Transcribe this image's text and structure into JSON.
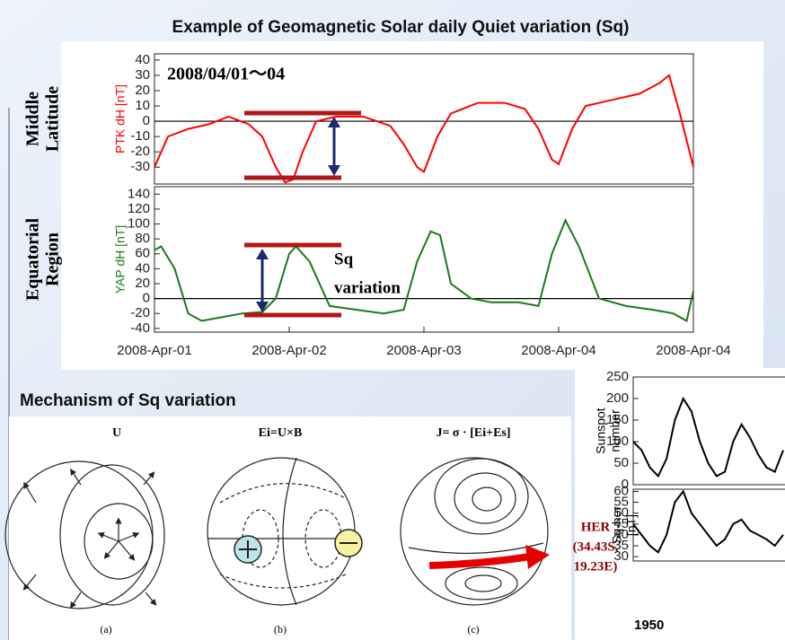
{
  "header": "Example of Geomagnetic Solar daily Quiet variation (Sq)",
  "chart_data": [
    {
      "type": "line",
      "annotation": "2008/04/01～04",
      "region_label": [
        "Middle",
        "Latitude"
      ],
      "ylabel": "PTK dH [nT]",
      "color": "#ff0000",
      "x": [
        0,
        0.1,
        0.25,
        0.4,
        0.55,
        0.7,
        0.8,
        0.9,
        0.97,
        1.03,
        1.1,
        1.2,
        1.35,
        1.55,
        1.75,
        1.85,
        1.95,
        2.0,
        2.1,
        2.2,
        2.4,
        2.6,
        2.75,
        2.85,
        2.95,
        3.0,
        3.1,
        3.2,
        3.4,
        3.6,
        3.75,
        3.82,
        3.9,
        4.0
      ],
      "values": [
        -30,
        -10,
        -5,
        -2,
        3,
        -2,
        -10,
        -30,
        -40,
        -38,
        -20,
        0,
        3,
        3,
        -3,
        -15,
        -30,
        -33,
        -10,
        5,
        12,
        12,
        8,
        -5,
        -25,
        -28,
        -5,
        10,
        14,
        18,
        25,
        30,
        5,
        -30
      ],
      "xlim": [
        0,
        4
      ],
      "ylim": [
        -41,
        44
      ],
      "yticks": [
        40,
        30,
        20,
        10,
        0,
        -10,
        -20,
        -30
      ]
    },
    {
      "type": "line",
      "annotation": [
        "Sq",
        "variation"
      ],
      "region_label": [
        "Equatorial",
        "Region"
      ],
      "ylabel": "YAP dH [nT]",
      "color": "#1a7a1a",
      "x": [
        0,
        0.05,
        0.15,
        0.25,
        0.35,
        0.5,
        0.65,
        0.8,
        0.9,
        1.0,
        1.05,
        1.15,
        1.3,
        1.5,
        1.7,
        1.85,
        1.95,
        2.05,
        2.12,
        2.2,
        2.35,
        2.5,
        2.7,
        2.85,
        2.95,
        3.05,
        3.15,
        3.3,
        3.5,
        3.7,
        3.85,
        3.95,
        4.0
      ],
      "values": [
        65,
        70,
        40,
        -20,
        -30,
        -25,
        -20,
        -18,
        0,
        60,
        70,
        50,
        -10,
        -15,
        -20,
        -15,
        50,
        90,
        85,
        20,
        0,
        -5,
        -5,
        -10,
        60,
        105,
        70,
        0,
        -10,
        -15,
        -20,
        -30,
        10
      ],
      "xlim": [
        0,
        4
      ],
      "ylim": [
        -45,
        150
      ],
      "yticks": [
        140,
        120,
        100,
        80,
        60,
        40,
        20,
        0,
        -20,
        -40
      ],
      "xticks": [
        {
          "value": 0,
          "label": "2008-Apr-01"
        },
        {
          "value": 1,
          "label": "2008-Apr-02"
        },
        {
          "value": 2,
          "label": "2008-Apr-03"
        },
        {
          "value": 3,
          "label": "2008-Apr-04"
        },
        {
          "value": 4,
          "label": "2008-Apr-04"
        }
      ]
    },
    {
      "type": "line",
      "ylabel": [
        "Sunspot",
        "number"
      ],
      "color": "#000000",
      "values": [
        100,
        80,
        40,
        20,
        60,
        150,
        200,
        170,
        100,
        50,
        20,
        30,
        100,
        140,
        110,
        70,
        40,
        30,
        80
      ],
      "ylim": [
        0,
        250
      ],
      "yticks": [
        250,
        200,
        150,
        100,
        50,
        0
      ]
    },
    {
      "type": "line",
      "ylabel": [
        "Sq-her",
        "[nT]"
      ],
      "color": "#000000",
      "annotation": "1950",
      "values": [
        45,
        40,
        35,
        32,
        40,
        55,
        60,
        50,
        45,
        40,
        35,
        38,
        45,
        47,
        42,
        40,
        38,
        35,
        40
      ],
      "ylim": [
        28,
        61
      ],
      "yticks": [
        60,
        55,
        50,
        45,
        40,
        35,
        30
      ]
    }
  ],
  "diagram": {
    "title": "Mechanism of Sq variation",
    "panels": [
      {
        "heading": "U",
        "caption": "(a)"
      },
      {
        "heading": "Ei=U×B",
        "caption": "(b)"
      },
      {
        "heading": "J= σ · [Ei+Es]",
        "caption": "(c)"
      }
    ]
  },
  "station": {
    "name": "HER",
    "coords": [
      "(34.43S,",
      "19.23E)"
    ]
  }
}
